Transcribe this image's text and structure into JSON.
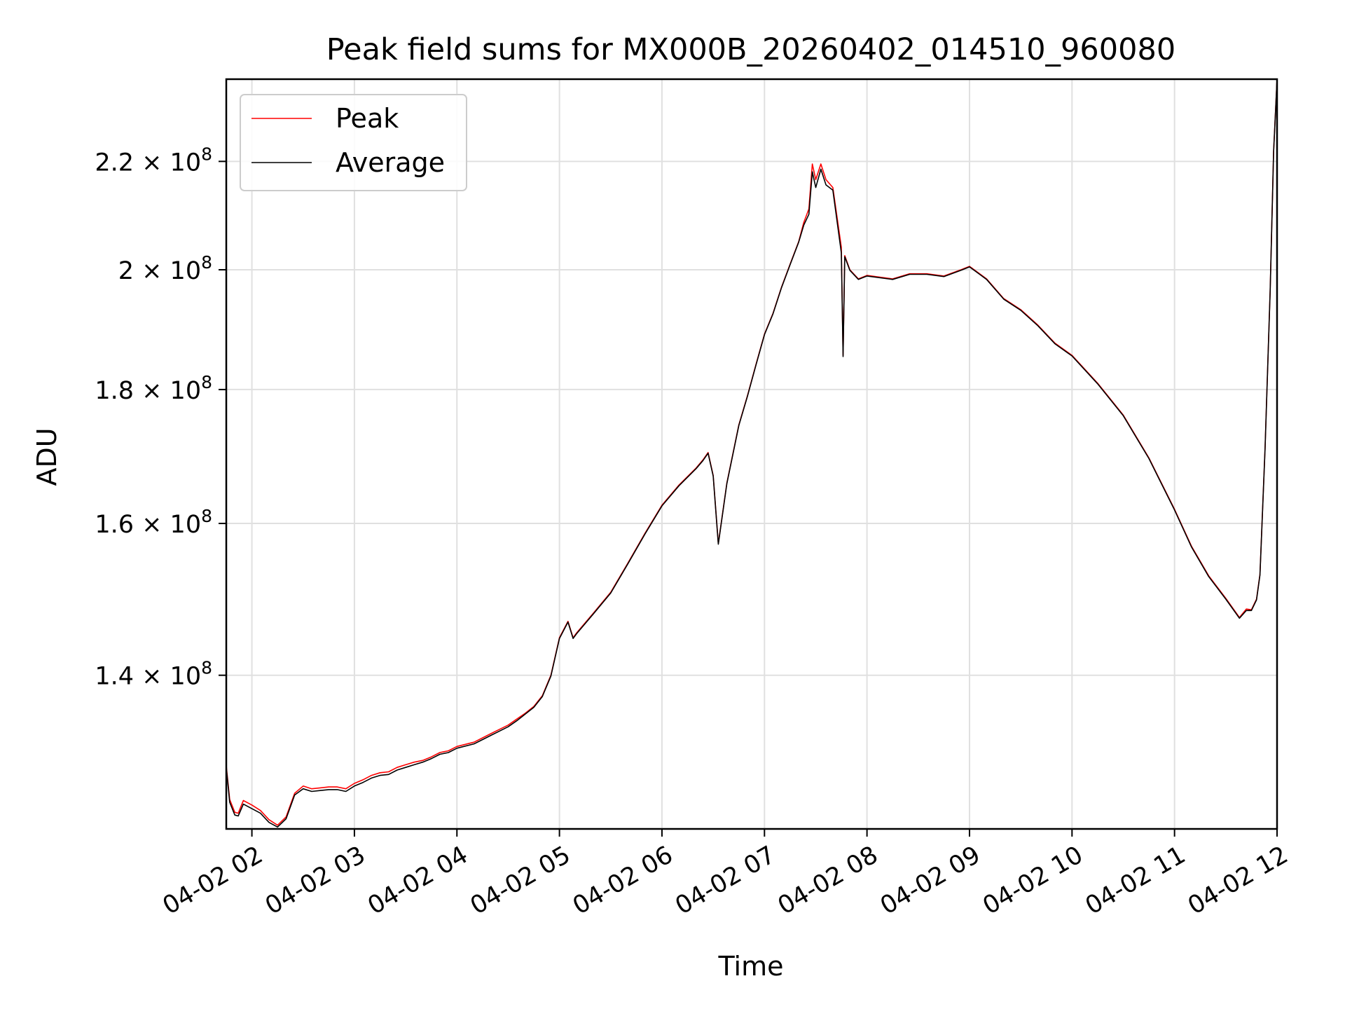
{
  "chart_data": {
    "type": "line",
    "title": "Peak field sums for MX000B_20260402_014510_960080",
    "xlabel": "Time",
    "ylabel": "ADU",
    "y_scale": "log",
    "xlim": [
      "2026-04-02 01:45",
      "2026-04-02 12:00"
    ],
    "ylim": [
      122300000,
      236500000
    ],
    "grid": true,
    "legend_position": "top-left",
    "x_ticks": [
      {
        "t": "2026-04-02 02:00",
        "label": "04-02 02"
      },
      {
        "t": "2026-04-02 03:00",
        "label": "04-02 03"
      },
      {
        "t": "2026-04-02 04:00",
        "label": "04-02 04"
      },
      {
        "t": "2026-04-02 05:00",
        "label": "04-02 05"
      },
      {
        "t": "2026-04-02 06:00",
        "label": "04-02 06"
      },
      {
        "t": "2026-04-02 07:00",
        "label": "04-02 07"
      },
      {
        "t": "2026-04-02 08:00",
        "label": "04-02 08"
      },
      {
        "t": "2026-04-02 09:00",
        "label": "04-02 09"
      },
      {
        "t": "2026-04-02 10:00",
        "label": "04-02 10"
      },
      {
        "t": "2026-04-02 11:00",
        "label": "04-02 11"
      },
      {
        "t": "2026-04-02 12:00",
        "label": "04-02 12"
      }
    ],
    "y_ticks": [
      {
        "value": 140000000,
        "mantissa": "1.4",
        "exp": "8"
      },
      {
        "value": 160000000,
        "mantissa": "1.6",
        "exp": "8"
      },
      {
        "value": 180000000,
        "mantissa": "1.8",
        "exp": "8"
      },
      {
        "value": 200000000,
        "mantissa": "2",
        "exp": "8"
      },
      {
        "value": 220000000,
        "mantissa": "2.2",
        "exp": "8"
      }
    ],
    "series": [
      {
        "name": "Peak",
        "color": "#ff0000",
        "x": [
          "2026-04-02 01:45",
          "2026-04-02 01:47",
          "2026-04-02 01:50",
          "2026-04-02 01:52",
          "2026-04-02 01:55",
          "2026-04-02 02:00",
          "2026-04-02 02:05",
          "2026-04-02 02:10",
          "2026-04-02 02:15",
          "2026-04-02 02:20",
          "2026-04-02 02:25",
          "2026-04-02 02:30",
          "2026-04-02 02:35",
          "2026-04-02 02:40",
          "2026-04-02 02:45",
          "2026-04-02 02:50",
          "2026-04-02 02:55",
          "2026-04-02 03:00",
          "2026-04-02 03:05",
          "2026-04-02 03:10",
          "2026-04-02 03:15",
          "2026-04-02 03:20",
          "2026-04-02 03:25",
          "2026-04-02 03:30",
          "2026-04-02 03:35",
          "2026-04-02 03:40",
          "2026-04-02 03:45",
          "2026-04-02 03:50",
          "2026-04-02 03:55",
          "2026-04-02 04:00",
          "2026-04-02 04:10",
          "2026-04-02 04:15",
          "2026-04-02 04:20",
          "2026-04-02 04:25",
          "2026-04-02 04:30",
          "2026-04-02 04:35",
          "2026-04-02 04:40",
          "2026-04-02 04:45",
          "2026-04-02 04:50",
          "2026-04-02 04:55",
          "2026-04-02 05:00",
          "2026-04-02 05:05",
          "2026-04-02 05:08",
          "2026-04-02 05:10",
          "2026-04-02 05:15",
          "2026-04-02 05:20",
          "2026-04-02 05:30",
          "2026-04-02 05:40",
          "2026-04-02 05:50",
          "2026-04-02 06:00",
          "2026-04-02 06:10",
          "2026-04-02 06:20",
          "2026-04-02 06:24",
          "2026-04-02 06:27",
          "2026-04-02 06:30",
          "2026-04-02 06:33",
          "2026-04-02 06:38",
          "2026-04-02 06:45",
          "2026-04-02 06:50",
          "2026-04-02 06:55",
          "2026-04-02 07:00",
          "2026-04-02 07:05",
          "2026-04-02 07:10",
          "2026-04-02 07:15",
          "2026-04-02 07:20",
          "2026-04-02 07:23",
          "2026-04-02 07:26",
          "2026-04-02 07:28",
          "2026-04-02 07:30",
          "2026-04-02 07:33",
          "2026-04-02 07:36",
          "2026-04-02 07:40",
          "2026-04-02 07:45",
          "2026-04-02 07:46",
          "2026-04-02 07:47",
          "2026-04-02 07:50",
          "2026-04-02 07:55",
          "2026-04-02 08:00",
          "2026-04-02 08:15",
          "2026-04-02 08:25",
          "2026-04-02 08:35",
          "2026-04-02 08:45",
          "2026-04-02 08:55",
          "2026-04-02 09:00",
          "2026-04-02 09:10",
          "2026-04-02 09:20",
          "2026-04-02 09:30",
          "2026-04-02 09:40",
          "2026-04-02 09:50",
          "2026-04-02 10:00",
          "2026-04-02 10:15",
          "2026-04-02 10:30",
          "2026-04-02 10:45",
          "2026-04-02 11:00",
          "2026-04-02 11:10",
          "2026-04-02 11:20",
          "2026-04-02 11:30",
          "2026-04-02 11:38",
          "2026-04-02 11:42",
          "2026-04-02 11:45",
          "2026-04-02 11:48",
          "2026-04-02 11:50",
          "2026-04-02 11:53",
          "2026-04-02 11:56",
          "2026-04-02 11:58",
          "2026-04-02 12:00"
        ],
        "y": [
          129300000,
          125500000,
          124100000,
          124000000,
          125400000,
          124900000,
          124300000,
          123300000,
          122700000,
          123600000,
          126200000,
          127000000,
          126700000,
          126800000,
          126900000,
          126900000,
          126700000,
          127300000,
          127700000,
          128200000,
          128500000,
          128600000,
          129100000,
          129400000,
          129700000,
          129900000,
          130300000,
          130800000,
          131000000,
          131500000,
          132000000,
          132500000,
          133000000,
          133500000,
          134000000,
          134700000,
          135400000,
          136200000,
          137500000,
          140000000,
          144700000,
          146800000,
          144700000,
          145300000,
          146600000,
          147900000,
          150600000,
          154500000,
          158600000,
          162600000,
          165500000,
          168000000,
          169200000,
          170300000,
          166900000,
          157200000,
          165800000,
          174500000,
          179000000,
          184000000,
          189000000,
          192500000,
          197000000,
          201000000,
          205000000,
          208500000,
          211000000,
          219500000,
          216500000,
          219500000,
          216500000,
          215000000,
          204000000,
          185500000,
          202500000,
          200000000,
          198400000,
          199000000,
          198400000,
          199300000,
          199300000,
          198900000,
          200000000,
          200600000,
          198400000,
          195000000,
          193100000,
          190500000,
          187500000,
          185500000,
          181000000,
          176000000,
          169500000,
          162000000,
          156800000,
          152800000,
          149800000,
          147300000,
          148400000,
          148300000,
          149700000,
          153000000,
          171000000,
          196500000,
          222000000,
          236500000
        ]
      },
      {
        "name": "Average",
        "color": "#000000",
        "x": [
          "2026-04-02 01:45",
          "2026-04-02 01:47",
          "2026-04-02 01:50",
          "2026-04-02 01:52",
          "2026-04-02 01:55",
          "2026-04-02 02:00",
          "2026-04-02 02:05",
          "2026-04-02 02:10",
          "2026-04-02 02:15",
          "2026-04-02 02:20",
          "2026-04-02 02:25",
          "2026-04-02 02:30",
          "2026-04-02 02:35",
          "2026-04-02 02:40",
          "2026-04-02 02:45",
          "2026-04-02 02:50",
          "2026-04-02 02:55",
          "2026-04-02 03:00",
          "2026-04-02 03:05",
          "2026-04-02 03:10",
          "2026-04-02 03:15",
          "2026-04-02 03:20",
          "2026-04-02 03:25",
          "2026-04-02 03:30",
          "2026-04-02 03:35",
          "2026-04-02 03:40",
          "2026-04-02 03:45",
          "2026-04-02 03:50",
          "2026-04-02 03:55",
          "2026-04-02 04:00",
          "2026-04-02 04:10",
          "2026-04-02 04:15",
          "2026-04-02 04:20",
          "2026-04-02 04:25",
          "2026-04-02 04:30",
          "2026-04-02 04:35",
          "2026-04-02 04:40",
          "2026-04-02 04:45",
          "2026-04-02 04:50",
          "2026-04-02 04:55",
          "2026-04-02 05:00",
          "2026-04-02 05:05",
          "2026-04-02 05:08",
          "2026-04-02 05:10",
          "2026-04-02 05:15",
          "2026-04-02 05:20",
          "2026-04-02 05:30",
          "2026-04-02 05:40",
          "2026-04-02 05:50",
          "2026-04-02 06:00",
          "2026-04-02 06:10",
          "2026-04-02 06:20",
          "2026-04-02 06:24",
          "2026-04-02 06:27",
          "2026-04-02 06:30",
          "2026-04-02 06:33",
          "2026-04-02 06:38",
          "2026-04-02 06:45",
          "2026-04-02 06:50",
          "2026-04-02 06:55",
          "2026-04-02 07:00",
          "2026-04-02 07:05",
          "2026-04-02 07:10",
          "2026-04-02 07:15",
          "2026-04-02 07:20",
          "2026-04-02 07:23",
          "2026-04-02 07:26",
          "2026-04-02 07:28",
          "2026-04-02 07:30",
          "2026-04-02 07:33",
          "2026-04-02 07:36",
          "2026-04-02 07:40",
          "2026-04-02 07:45",
          "2026-04-02 07:46",
          "2026-04-02 07:47",
          "2026-04-02 07:50",
          "2026-04-02 07:55",
          "2026-04-02 08:00",
          "2026-04-02 08:15",
          "2026-04-02 08:25",
          "2026-04-02 08:35",
          "2026-04-02 08:45",
          "2026-04-02 08:55",
          "2026-04-02 09:00",
          "2026-04-02 09:10",
          "2026-04-02 09:20",
          "2026-04-02 09:30",
          "2026-04-02 09:40",
          "2026-04-02 09:50",
          "2026-04-02 10:00",
          "2026-04-02 10:15",
          "2026-04-02 10:30",
          "2026-04-02 10:45",
          "2026-04-02 11:00",
          "2026-04-02 11:10",
          "2026-04-02 11:20",
          "2026-04-02 11:30",
          "2026-04-02 11:38",
          "2026-04-02 11:42",
          "2026-04-02 11:45",
          "2026-04-02 11:48",
          "2026-04-02 11:50",
          "2026-04-02 11:53",
          "2026-04-02 11:56",
          "2026-04-02 11:58",
          "2026-04-02 12:00"
        ],
        "y": [
          129100000,
          125200000,
          123800000,
          123700000,
          125000000,
          124500000,
          124000000,
          123000000,
          122500000,
          123400000,
          126000000,
          126700000,
          126400000,
          126500000,
          126600000,
          126600000,
          126400000,
          127000000,
          127400000,
          127900000,
          128200000,
          128300000,
          128800000,
          129100000,
          129400000,
          129700000,
          130100000,
          130600000,
          130800000,
          131300000,
          131800000,
          132300000,
          132800000,
          133300000,
          133800000,
          134500000,
          135300000,
          136100000,
          137400000,
          139900000,
          144600000,
          146700000,
          144600000,
          145200000,
          146500000,
          147800000,
          150500000,
          154400000,
          158500000,
          162500000,
          165400000,
          167900000,
          169100000,
          170200000,
          166800000,
          157100000,
          165700000,
          174400000,
          178900000,
          183900000,
          188900000,
          192400000,
          196900000,
          200900000,
          204900000,
          208000000,
          210000000,
          218000000,
          215000000,
          218500000,
          215500000,
          214500000,
          203000000,
          185300000,
          202300000,
          199900000,
          198300000,
          198900000,
          198300000,
          199200000,
          199200000,
          198800000,
          199900000,
          200500000,
          198300000,
          194900000,
          193000000,
          190400000,
          187400000,
          185400000,
          180900000,
          175900000,
          169400000,
          161900000,
          156700000,
          152700000,
          149700000,
          147200000,
          148200000,
          148200000,
          149600000,
          152900000,
          170900000,
          196400000,
          221900000,
          236500000
        ]
      }
    ]
  }
}
